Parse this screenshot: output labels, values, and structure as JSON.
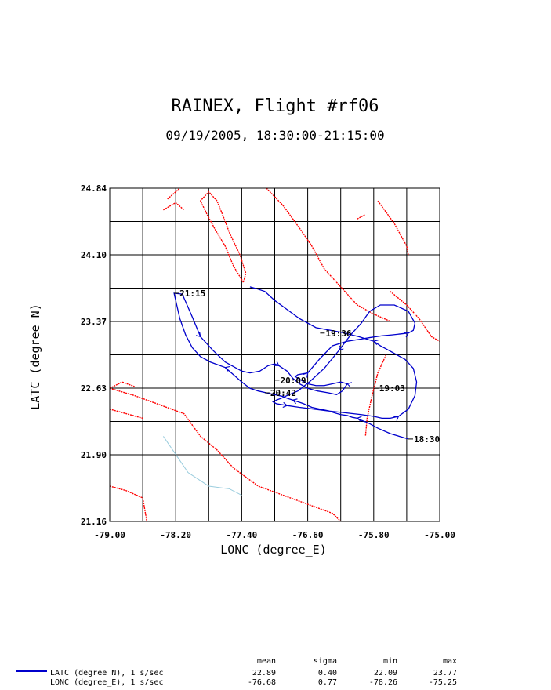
{
  "chart_data": {
    "type": "line",
    "title": "RAINEX, Flight #rf06",
    "subtitle": "09/19/2005, 18:30:00-21:15:00",
    "xlabel": "LONC (degree_E)",
    "ylabel": "LATC (degree_N)",
    "xlim": [
      -79.0,
      -75.0
    ],
    "ylim": [
      21.16,
      24.84
    ],
    "x_ticks": [
      "-79.00",
      "-78.20",
      "-77.40",
      "-76.60",
      "-75.80",
      "-75.00"
    ],
    "y_ticks": [
      "21.16",
      "21.90",
      "22.63",
      "23.37",
      "24.10",
      "24.84"
    ],
    "grid": true,
    "line_color": "#0000cc",
    "coast_color": "#ff0000",
    "river_color": "#99ccdd",
    "series": [
      {
        "x": [
          -75.38,
          -75.6,
          -75.75,
          -75.85,
          -75.9,
          -75.96,
          -76.0,
          -76.06,
          -76.12,
          -76.2,
          -76.28,
          -76.34,
          -76.45,
          -76.55,
          -76.65,
          -76.78,
          -76.85,
          -76.9,
          -77.0,
          -77.1,
          -77.2,
          -77.3,
          -77.4,
          -77.5,
          -77.6,
          -77.78,
          -77.9,
          -78.0,
          -78.08,
          -78.15,
          -78.22,
          -78.12,
          -78.0,
          -77.9,
          -77.75,
          -77.6,
          -77.48,
          -77.4,
          -77.3,
          -77.18,
          -77.08,
          -77.0,
          -76.95,
          -76.85,
          -76.78,
          -76.7,
          -76.6,
          -76.48,
          -76.35,
          -76.25,
          -76.18,
          -76.12,
          -76.2,
          -76.3,
          -76.4,
          -76.5,
          -76.6,
          -76.68,
          -76.75,
          -76.72,
          -76.6,
          -76.45,
          -76.3,
          -76.12,
          -75.98,
          -75.85,
          -75.7,
          -75.58,
          -75.48,
          -75.38,
          -75.32,
          -75.3,
          -75.38,
          -75.55,
          -75.72,
          -75.85,
          -75.95,
          -76.08,
          -76.22,
          -76.4,
          -76.58,
          -76.72,
          -76.85,
          -76.92,
          -76.98,
          -77.02,
          -76.98,
          -76.85,
          -76.7,
          -76.52,
          -76.35,
          -76.15,
          -75.95,
          -75.8,
          -75.7,
          -75.6,
          -75.5,
          -75.38,
          -75.3,
          -75.28,
          -75.32,
          -75.42,
          -75.52,
          -75.62,
          -75.72,
          -75.8,
          -75.98,
          -76.2,
          -76.5,
          -76.7,
          -76.85,
          -77.0,
          -77.12,
          -77.22,
          -77.3
        ],
        "y": [
          22.07,
          22.13,
          22.19,
          22.24,
          22.26,
          22.28,
          22.3,
          22.31,
          22.33,
          22.34,
          22.36,
          22.38,
          22.4,
          22.42,
          22.46,
          22.5,
          22.52,
          22.54,
          22.56,
          22.58,
          22.6,
          22.63,
          22.7,
          22.78,
          22.86,
          22.92,
          22.98,
          23.08,
          23.22,
          23.4,
          23.68,
          23.67,
          23.42,
          23.2,
          23.05,
          22.92,
          22.86,
          22.82,
          22.8,
          22.82,
          22.88,
          22.9,
          22.88,
          22.82,
          22.74,
          22.68,
          22.63,
          22.6,
          22.58,
          22.56,
          22.6,
          22.68,
          22.7,
          22.68,
          22.66,
          22.66,
          22.68,
          22.72,
          22.76,
          22.78,
          22.8,
          22.96,
          23.1,
          23.15,
          23.17,
          23.19,
          23.21,
          23.22,
          23.23,
          23.24,
          23.27,
          23.35,
          23.48,
          23.55,
          23.55,
          23.48,
          23.35,
          23.22,
          23.05,
          22.85,
          22.7,
          22.6,
          22.55,
          22.52,
          22.5,
          22.48,
          22.46,
          22.44,
          22.42,
          22.4,
          22.38,
          22.36,
          22.34,
          22.32,
          22.3,
          22.3,
          22.32,
          22.4,
          22.55,
          22.7,
          22.85,
          22.95,
          23.0,
          23.05,
          23.1,
          23.15,
          23.2,
          23.25,
          23.3,
          23.4,
          23.5,
          23.6,
          23.7,
          23.73,
          23.75
        ]
      }
    ],
    "annotations": [
      {
        "text": "18:30",
        "x": -75.38,
        "y": 22.07
      },
      {
        "text": "19:03",
        "x": -75.8,
        "y": 22.63
      },
      {
        "text": "19:36",
        "x": -76.45,
        "y": 23.24
      },
      {
        "text": "20:09",
        "x": -77.0,
        "y": 22.72
      },
      {
        "text": "20:42",
        "x": -77.12,
        "y": 22.58
      },
      {
        "text": "21:15",
        "x": -78.22,
        "y": 23.68
      }
    ],
    "stats": {
      "headers": [
        "mean",
        "sigma",
        "min",
        "max"
      ],
      "rows": [
        {
          "label": "LATC (degree_N), 1 s/sec",
          "values": [
            "22.89",
            "0.40",
            "22.09",
            "23.77"
          ]
        },
        {
          "label": "LONC (degree_E), 1 s/sec",
          "values": [
            "-76.68",
            "0.77",
            "-78.26",
            "-75.25"
          ]
        }
      ]
    }
  }
}
